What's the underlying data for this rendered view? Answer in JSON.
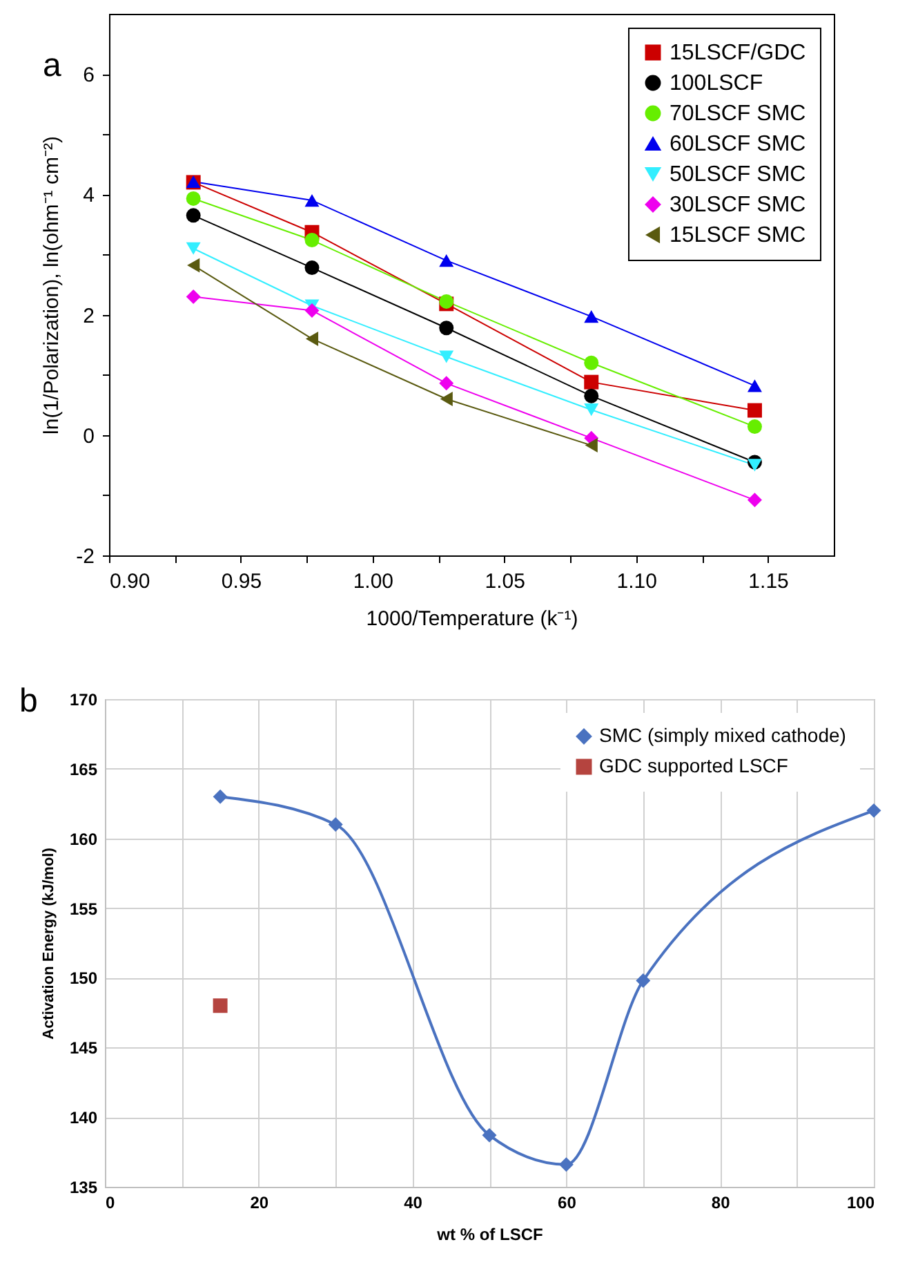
{
  "chart_data": [
    {
      "type": "line",
      "title": "a",
      "xlabel": "1000/Temperature (k⁻¹)",
      "ylabel": "ln(1/Polarization), ln(ohm⁻¹ cm⁻²)",
      "x": [
        0.932,
        0.977,
        1.028,
        1.083,
        1.145
      ],
      "xlim": [
        0.9,
        1.175
      ],
      "xticks": [
        {
          "value": 0.9,
          "label": "0.90"
        },
        {
          "value": 0.925,
          "label": null
        },
        {
          "value": 0.95,
          "label": "0.95"
        },
        {
          "value": 0.975,
          "label": null
        },
        {
          "value": 1.0,
          "label": "1.00"
        },
        {
          "value": 1.025,
          "label": null
        },
        {
          "value": 1.05,
          "label": "1.05"
        },
        {
          "value": 1.075,
          "label": null
        },
        {
          "value": 1.1,
          "label": "1.10"
        },
        {
          "value": 1.125,
          "label": null
        },
        {
          "value": 1.15,
          "label": "1.15"
        }
      ],
      "ylim": [
        -2,
        7
      ],
      "yticks": [
        -2,
        {
          "value": -1,
          "label": null
        },
        0,
        {
          "value": 1,
          "label": null
        },
        2,
        {
          "value": 3,
          "label": null
        },
        4,
        {
          "value": 5,
          "label": null
        },
        6
      ],
      "grid": false,
      "legend": "top right",
      "series": [
        {
          "name": "15LSCF/GDC",
          "color": "#cc0000",
          "marker": "square",
          "values": [
            4.2,
            3.37,
            2.18,
            0.88,
            0.41
          ]
        },
        {
          "name": "100LSCF",
          "color": "#000000",
          "marker": "circle",
          "values": [
            3.65,
            2.78,
            1.78,
            0.65,
            -0.45
          ]
        },
        {
          "name": "70LSCF SMC",
          "color": "#66ee00",
          "marker": "circle",
          "values": [
            3.93,
            3.24,
            2.22,
            1.2,
            0.14
          ]
        },
        {
          "name": "60LSCF SMC",
          "color": "#0000ee",
          "marker": "triangle-up",
          "values": [
            4.21,
            3.9,
            2.9,
            1.97,
            0.82
          ]
        },
        {
          "name": "50LSCF SMC",
          "color": "#33eeff",
          "marker": "triangle-down",
          "values": [
            3.1,
            2.15,
            1.3,
            0.42,
            -0.5
          ]
        },
        {
          "name": "30LSCF SMC",
          "color": "#ee00ee",
          "marker": "diamond",
          "values": [
            2.3,
            2.07,
            0.86,
            -0.05,
            -1.08
          ]
        },
        {
          "name": "15LSCF SMC",
          "color": "#5a5a10",
          "marker": "triangle-left",
          "values": [
            2.82,
            1.6,
            0.6,
            -0.17,
            null
          ]
        }
      ]
    },
    {
      "type": "line",
      "title": "b",
      "xlabel": "wt % of LSCF",
      "ylabel": "Activation Energy (kJ/mol)",
      "xlim": [
        0,
        100
      ],
      "xticks": [
        0,
        {
          "value": 10,
          "label": null
        },
        20,
        {
          "value": 30,
          "label": null
        },
        40,
        {
          "value": 50,
          "label": null
        },
        60,
        {
          "value": 70,
          "label": null
        },
        80,
        {
          "value": 90,
          "label": null
        },
        100
      ],
      "ylim": [
        135,
        170
      ],
      "yticks": [
        135,
        140,
        145,
        150,
        155,
        160,
        165,
        170
      ],
      "grid": true,
      "legend": "top right",
      "series": [
        {
          "name": "SMC (simply mixed cathode)",
          "color": "#4a72c0",
          "marker": "diamond",
          "x": [
            15,
            30,
            50,
            60,
            70,
            100
          ],
          "values": [
            163,
            161,
            138.7,
            136.6,
            149.8,
            162
          ]
        },
        {
          "name": "GDC supported LSCF",
          "type": "scatter",
          "color": "#b5443f",
          "marker": "square",
          "x": [
            15
          ],
          "values": [
            148
          ]
        }
      ]
    }
  ]
}
